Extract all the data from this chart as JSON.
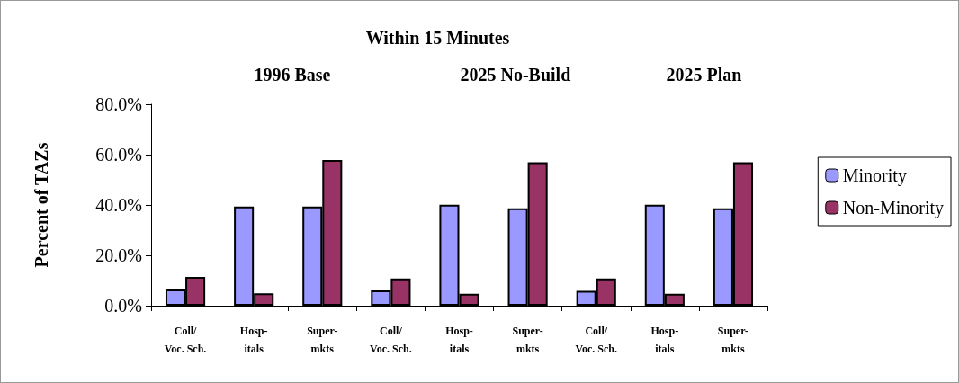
{
  "chart_data": {
    "type": "bar",
    "title": "Within 15 Minutes",
    "ylabel": "Percent of TAZs",
    "categories": [
      "Coll/\nVoc. Sch.",
      "Hosp-\nitals",
      "Super-\nmkts",
      "Coll/\nVoc. Sch.",
      "Hosp-\nitals",
      "Super-\nmkts",
      "Coll/\nVoc. Sch.",
      "Hosp-\nitals",
      "Super-\nmkts"
    ],
    "series": [
      {
        "name": "Minority",
        "color": "#9999ff",
        "values": [
          6.4,
          39.4,
          39.4,
          6.1,
          40.1,
          38.7,
          5.9,
          40.1,
          38.7
        ]
      },
      {
        "name": "Non-Minority",
        "color": "#993366",
        "values": [
          11.4,
          4.9,
          57.9,
          10.8,
          4.7,
          57.0,
          10.8,
          4.7,
          57.0
        ]
      }
    ],
    "ylim": [
      0,
      80
    ],
    "yticks": [
      {
        "value": 0,
        "label": "0.0%"
      },
      {
        "value": 20,
        "label": "20.0%"
      },
      {
        "value": 40,
        "label": "40.0%"
      },
      {
        "value": 60,
        "label": "60.0%"
      },
      {
        "value": 80,
        "label": "80.0%"
      }
    ],
    "annotations": [
      "1996 Base",
      "2025 No-Build",
      "2025 Plan"
    ],
    "grid": false,
    "legend": "right"
  }
}
